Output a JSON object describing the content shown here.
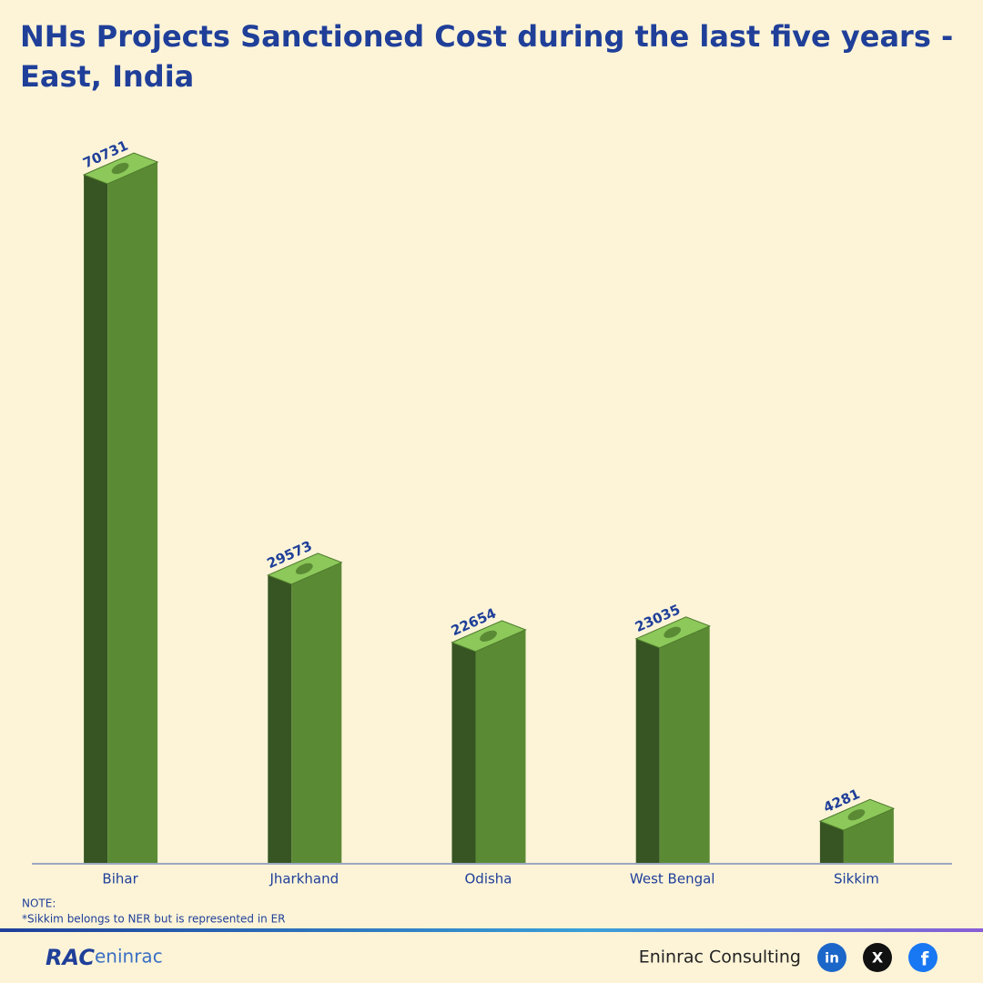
{
  "chart_data": {
    "type": "bar",
    "title": "NHs Projects Sanctioned Cost during the last five years - East, India",
    "categories": [
      "Bihar",
      "Jharkhand",
      "Odisha",
      "West Bengal",
      "Sikkim"
    ],
    "values": [
      70731,
      29573,
      22654,
      23035,
      4281
    ],
    "color": "#5b8a35",
    "note_heading": "NOTE:",
    "note": "*Sikkim belongs to NER but is represented in ER"
  },
  "footer": {
    "logo": "eninrac",
    "logo_mark": "RAC",
    "brand": "Eninrac Consulting",
    "icons": [
      "in",
      "X",
      "f"
    ]
  }
}
